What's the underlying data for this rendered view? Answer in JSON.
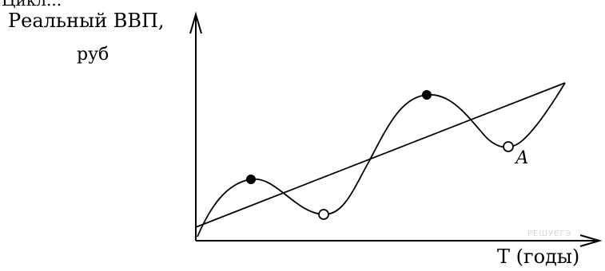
{
  "top_fragment": "Цикл...",
  "y_axis": {
    "label": "Реальный ВВП,",
    "unit": "руб"
  },
  "x_axis": {
    "label": "Т (годы)"
  },
  "point_label": "А",
  "watermark": "РЕШУЕГЭ"
}
